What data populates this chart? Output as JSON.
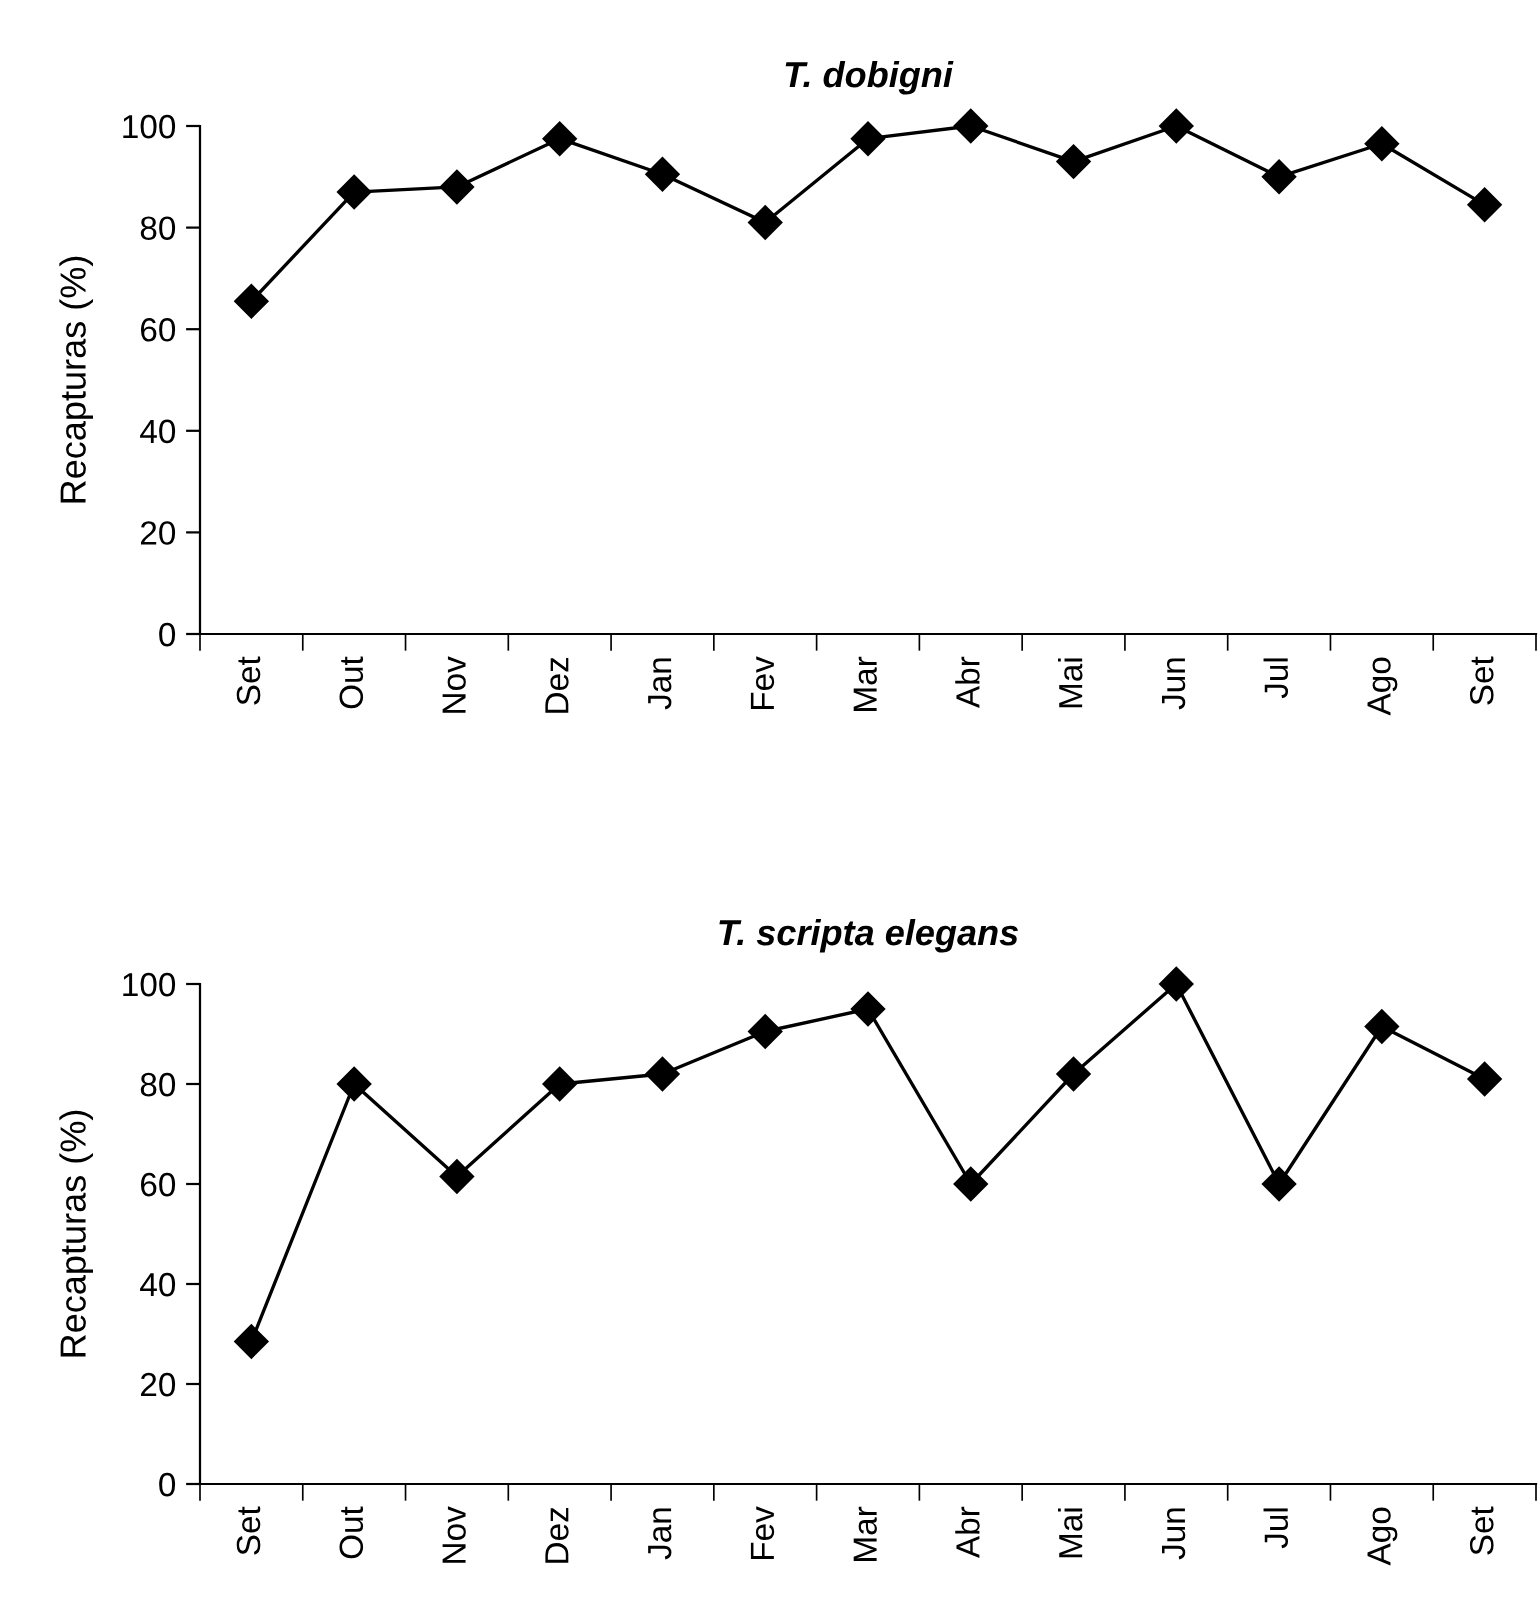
{
  "chart_data": [
    {
      "type": "line",
      "title": "T. dobigni",
      "ylabel": "Recapturas (%)",
      "categories": [
        "Set",
        "Out",
        "Nov",
        "Dez",
        "Jan",
        "Fev",
        "Mar",
        "Abr",
        "Mai",
        "Jun",
        "Jul",
        "Ago",
        "Set"
      ],
      "series": [
        {
          "color": "#000000",
          "values": [
            65.5,
            87,
            88,
            97.5,
            90.5,
            81,
            97.5,
            100,
            93,
            100,
            90,
            96.5,
            84.5
          ]
        }
      ],
      "ylim": [
        0,
        100
      ],
      "yticks": [
        0,
        20,
        40,
        60,
        80,
        100
      ],
      "marker": "diamond",
      "line_style": "solid",
      "grid": false
    },
    {
      "type": "line",
      "title": "T. scripta elegans",
      "ylabel": "Recapturas (%)",
      "categories": [
        "Set",
        "Out",
        "Nov",
        "Dez",
        "Jan",
        "Fev",
        "Mar",
        "Abr",
        "Mai",
        "Jun",
        "Jul",
        "Ago",
        "Set"
      ],
      "series": [
        {
          "color": "#000000",
          "values": [
            28.5,
            80,
            61.5,
            80,
            82,
            90.5,
            95,
            60,
            82,
            100,
            60,
            91.5,
            81
          ]
        }
      ],
      "ylim": [
        0,
        100
      ],
      "yticks": [
        0,
        20,
        40,
        60,
        80,
        100
      ],
      "marker": "diamond",
      "line_style": "solid",
      "grid": false
    }
  ]
}
